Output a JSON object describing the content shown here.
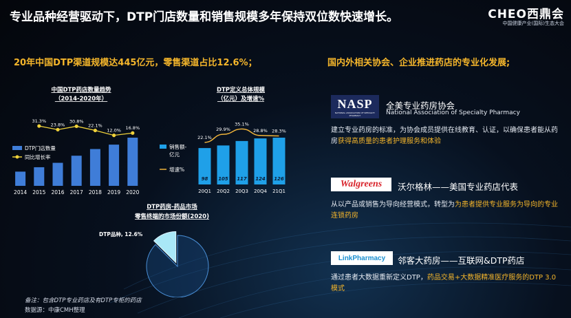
{
  "header": {
    "title": "专业品种经营驱动下，DTP门店数量和销售规模多年保持双位数快速增长。",
    "logo_main": "CHEO西鼎会",
    "logo_sub": "中国健康产业(国际)生态大会"
  },
  "left_heading": "20年中国DTP渠道规模达445亿元，零售渠道占比12.6%；",
  "right_heading": "国内外相关协会、企业推进药店的专业化发展;",
  "chart_data": [
    {
      "type": "bar",
      "title": "中国DTP药店数量趋势",
      "subtitle": "（2014-2020年）",
      "categories": [
        "2014",
        "2015",
        "2016",
        "2017",
        "2018",
        "2019",
        "2020"
      ],
      "series": [
        {
          "name": "DTP门店数量",
          "values": [
            100,
            131,
            162,
            212,
            259,
            290,
            339
          ]
        },
        {
          "name": "同比增长率",
          "type": "line",
          "values": [
            null,
            31.3,
            23.8,
            30.8,
            22.1,
            12.0,
            16.8
          ],
          "labels": [
            "",
            "31.3%",
            "23.8%",
            "30.8%",
            "22.1%",
            "12.0%",
            "16.8%"
          ]
        }
      ],
      "legend": "left",
      "grid": false,
      "bar_color": "#3f7dd8",
      "line_color": "#f0d23a"
    },
    {
      "type": "bar",
      "title": "DTP定义总体规模",
      "subtitle": "（亿元）及增速%",
      "categories": [
        "20Q1",
        "20Q2",
        "20Q3",
        "20Q4",
        "21Q1"
      ],
      "series": [
        {
          "name": "销售额-亿元",
          "values": [
            98,
            105,
            117,
            124,
            126
          ]
        },
        {
          "name": "增速%",
          "type": "line",
          "values": [
            22.1,
            29.9,
            35.1,
            28.8,
            28.3
          ],
          "labels": [
            "22.1%",
            "29.9%",
            "35.1%",
            "28.8%",
            "28.3%"
          ]
        }
      ],
      "legend": "left",
      "grid": false,
      "bar_color": "#1fa0e8",
      "line_color": "#f0b43a"
    },
    {
      "type": "pie",
      "title": "DTP药房-药品市场",
      "subtitle": "零售终端的市场份额(2020)",
      "slices": [
        {
          "name": "DTP品种",
          "value": 12.6,
          "label": "DTP品种, 12.6%"
        },
        {
          "name": "",
          "value": 87.4
        }
      ],
      "colors": [
        "#a9e8f7",
        "#1b4f8c"
      ]
    }
  ],
  "orgs": [
    {
      "logo_text": "NASP",
      "logo_small": "NATIONAL ASSOCIATION OF SPECIALTY PHARMACY",
      "name": "全美专业药房协会",
      "name_en": "National Association of Specialty Pharmacy",
      "desc_plain": "建立专业药房的标准，为协会成员提供在线教育、认证，以确保患者能从药房",
      "desc_highlight": "获得高质量的患者护理服务和体验"
    },
    {
      "logo_text": "Walgreens",
      "name": "沃尔格林——美国专业药店代表",
      "desc_plain": "从以产品或销售为导向经营模式，转型为",
      "desc_highlight": "为患者提供专业服务为导向的专业连锁药房"
    },
    {
      "logo_text": "LinkPharmacy",
      "name": "邻客大药房——互联网&DTP药店",
      "desc_plain": "通过患者大数据重新定义DTP，",
      "desc_highlight": "药品交易+大数据精准医疗服务的DTP 3.0模式"
    }
  ],
  "footnote": "备注：包含DTP专业药店及有DTP专柜的药店",
  "source": "数据源：中康CMH整理"
}
